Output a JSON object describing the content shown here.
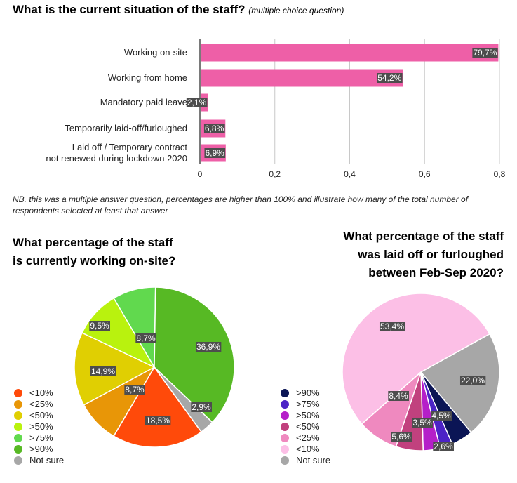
{
  "main_title": "What is the current situation of the staff?",
  "main_subtitle": "(multiple choice question)",
  "note": "NB. this was a multiple answer question, percentages are higher than 100% and illustrate how many of the total number of respondents selected at least that answer",
  "chart_data": [
    {
      "type": "bar",
      "orientation": "horizontal",
      "title": "What is the current situation of the staff?",
      "categories": [
        "Working on-site",
        "Working from home",
        "Mandatory paid leave",
        "Temporarily laid-off/furloughed",
        "Laid off / Temporary contract not renewed during lockdown 2020"
      ],
      "category_lines": [
        [
          "Working on-site"
        ],
        [
          "Working from home"
        ],
        [
          "Mandatory paid leave"
        ],
        [
          "Temporarily laid-off/furloughed"
        ],
        [
          "Laid off / Temporary contract",
          "not renewed during lockdown 2020"
        ]
      ],
      "values": [
        0.797,
        0.542,
        0.021,
        0.068,
        0.069
      ],
      "value_labels": [
        "79,7%",
        "54,2%",
        "2,1%",
        "6,8%",
        "6,9%"
      ],
      "xlim": [
        0,
        0.8
      ],
      "xticks": [
        0,
        0.2,
        0.4,
        0.6,
        0.8
      ],
      "xtick_labels": [
        "0",
        "0,2",
        "0,4",
        "0,6",
        "0,8"
      ],
      "grid": true,
      "bar_color": "#ee5fa7"
    },
    {
      "type": "pie",
      "title": "What percentage of the staff is currently working on-site?",
      "title_lines": [
        "What percentage of the staff",
        "is currently working on-site?"
      ],
      "slices": [
        {
          "label": "<10%",
          "value": 18.5,
          "value_label": "18,5%",
          "color": "#ff4a0a"
        },
        {
          "label": "<25%",
          "value": 8.7,
          "value_label": "8,7%",
          "color": "#e89607"
        },
        {
          "label": "<50%",
          "value": 14.9,
          "value_label": "14,9%",
          "color": "#e0cf02"
        },
        {
          "label": ">50%",
          "value": 9.5,
          "value_label": "9,5%",
          "color": "#b9f20e"
        },
        {
          "label": ">75%",
          "value": 8.7,
          "value_label": "8,7%",
          "color": "#61d94e"
        },
        {
          "label": ">90%",
          "value": 36.9,
          "value_label": "36,9%",
          "color": "#57b924"
        },
        {
          "label": "Not sure",
          "value": 2.9,
          "value_label": "2,9%",
          "color": "#a7a7a7"
        }
      ],
      "legend": [
        "<10%",
        "<25%",
        "<50%",
        ">50%",
        ">75%",
        ">90%",
        "Not sure"
      ],
      "legend_colors": [
        "#ff4a0a",
        "#e89607",
        "#e0cf02",
        "#b9f20e",
        "#61d94e",
        "#57b924",
        "#a7a7a7"
      ]
    },
    {
      "type": "pie",
      "title": "What percentage of the staff was laid off or furloughed between Feb-Sep 2020?",
      "title_lines": [
        "What percentage of the staff",
        "was laid off or furloughed",
        "between Feb-Sep 2020?"
      ],
      "slices": [
        {
          "label": "Not sure",
          "value": 22.0,
          "value_label": "22,0%",
          "color": "#a7a7a7"
        },
        {
          "label": ">90%",
          "value": 4.5,
          "value_label": "4,5%",
          "color": "#0b1555"
        },
        {
          "label": ">75%",
          "value": 2.6,
          "value_label": "2,6%",
          "color": "#4c23c6"
        },
        {
          "label": ">50%",
          "value": 3.5,
          "value_label": "3,5%",
          "color": "#b51fc9"
        },
        {
          "label": "<50%",
          "value": 5.6,
          "value_label": "5,6%",
          "color": "#c1417e"
        },
        {
          "label": "<25%",
          "value": 8.4,
          "value_label": "8,4%",
          "color": "#ef89bf"
        },
        {
          "label": "<10%",
          "value": 53.4,
          "value_label": "53,4%",
          "color": "#fcbfe6"
        }
      ],
      "legend": [
        ">90%",
        ">75%",
        ">50%",
        "<50%",
        "<25%",
        "<10%",
        "Not sure"
      ],
      "legend_colors": [
        "#0b1555",
        "#4c23c6",
        "#b51fc9",
        "#c1417e",
        "#ef89bf",
        "#fcbfe6",
        "#a7a7a7"
      ]
    }
  ]
}
